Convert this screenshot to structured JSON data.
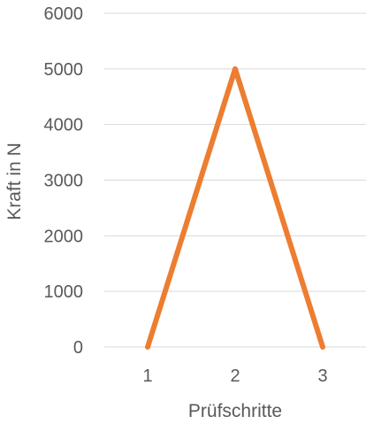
{
  "chart_data": {
    "type": "line",
    "xlabel": "Prüfschritte",
    "ylabel": "Kraft in N",
    "categories": [
      "1",
      "2",
      "3"
    ],
    "series": [
      {
        "values": [
          0,
          5000,
          0
        ],
        "color": "#ED7D31"
      }
    ],
    "ylim": [
      0,
      6000
    ],
    "yticks": [
      0,
      1000,
      2000,
      3000,
      4000,
      5000,
      6000
    ],
    "ytick_labels": [
      "0",
      "1000",
      "2000",
      "3000",
      "4000",
      "5000",
      "6000"
    ],
    "grid": true,
    "grid_color": "#D9D9D9",
    "legend": false
  }
}
